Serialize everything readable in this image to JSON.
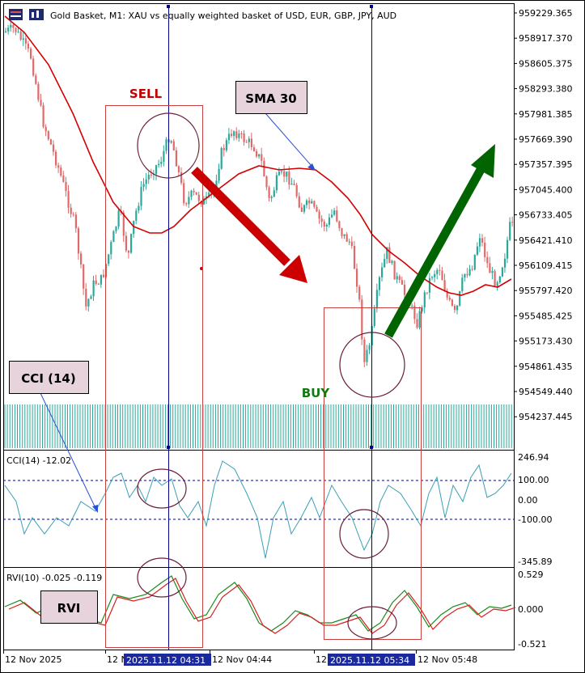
{
  "window": {
    "title": "Gold Basket, M1:  XAU vs equally weighted basket of USD, EUR, GBP, JPY, AUD"
  },
  "price_axis": {
    "labels": [
      "959229.365",
      "958917.370",
      "958605.375",
      "958293.380",
      "957981.385",
      "957669.390",
      "957357.395",
      "957045.400",
      "956733.405",
      "956421.410",
      "956109.415",
      "955797.420",
      "955485.425",
      "955173.430",
      "954861.435",
      "954549.440",
      "954237.445"
    ]
  },
  "cci": {
    "title": "CCI(14) -12.02",
    "labels": [
      "246.94",
      "100.00",
      "0.00",
      "-100.00",
      "-345.89"
    ]
  },
  "rvi": {
    "title": "RVI(10) -0.025 -0.119",
    "labels": [
      "0.529",
      "0.000",
      "-0.521"
    ]
  },
  "time_axis": {
    "labels": [
      "12 Nov 2025",
      "12 N",
      "12 Nov 04:44",
      "12",
      "12 Nov 05:48"
    ],
    "highlight_1": "2025.11.12 04:31",
    "highlight_2": "2025.11.12 05:34"
  },
  "annotations": {
    "sell": "SELL",
    "buy": "BUY",
    "sma_box": "SMA 30",
    "cci_box": "CCI (14)",
    "rvi_box": "RVI"
  },
  "colors": {
    "bull": "#2ca89a",
    "bear": "#e06a6a",
    "sma": "#d40000",
    "crosshair": "#00008b",
    "arrow_down": "#cc0000",
    "arrow_up": "#006400",
    "box_fill": "#e6d3dc",
    "circle": "#6b1e3a"
  }
}
